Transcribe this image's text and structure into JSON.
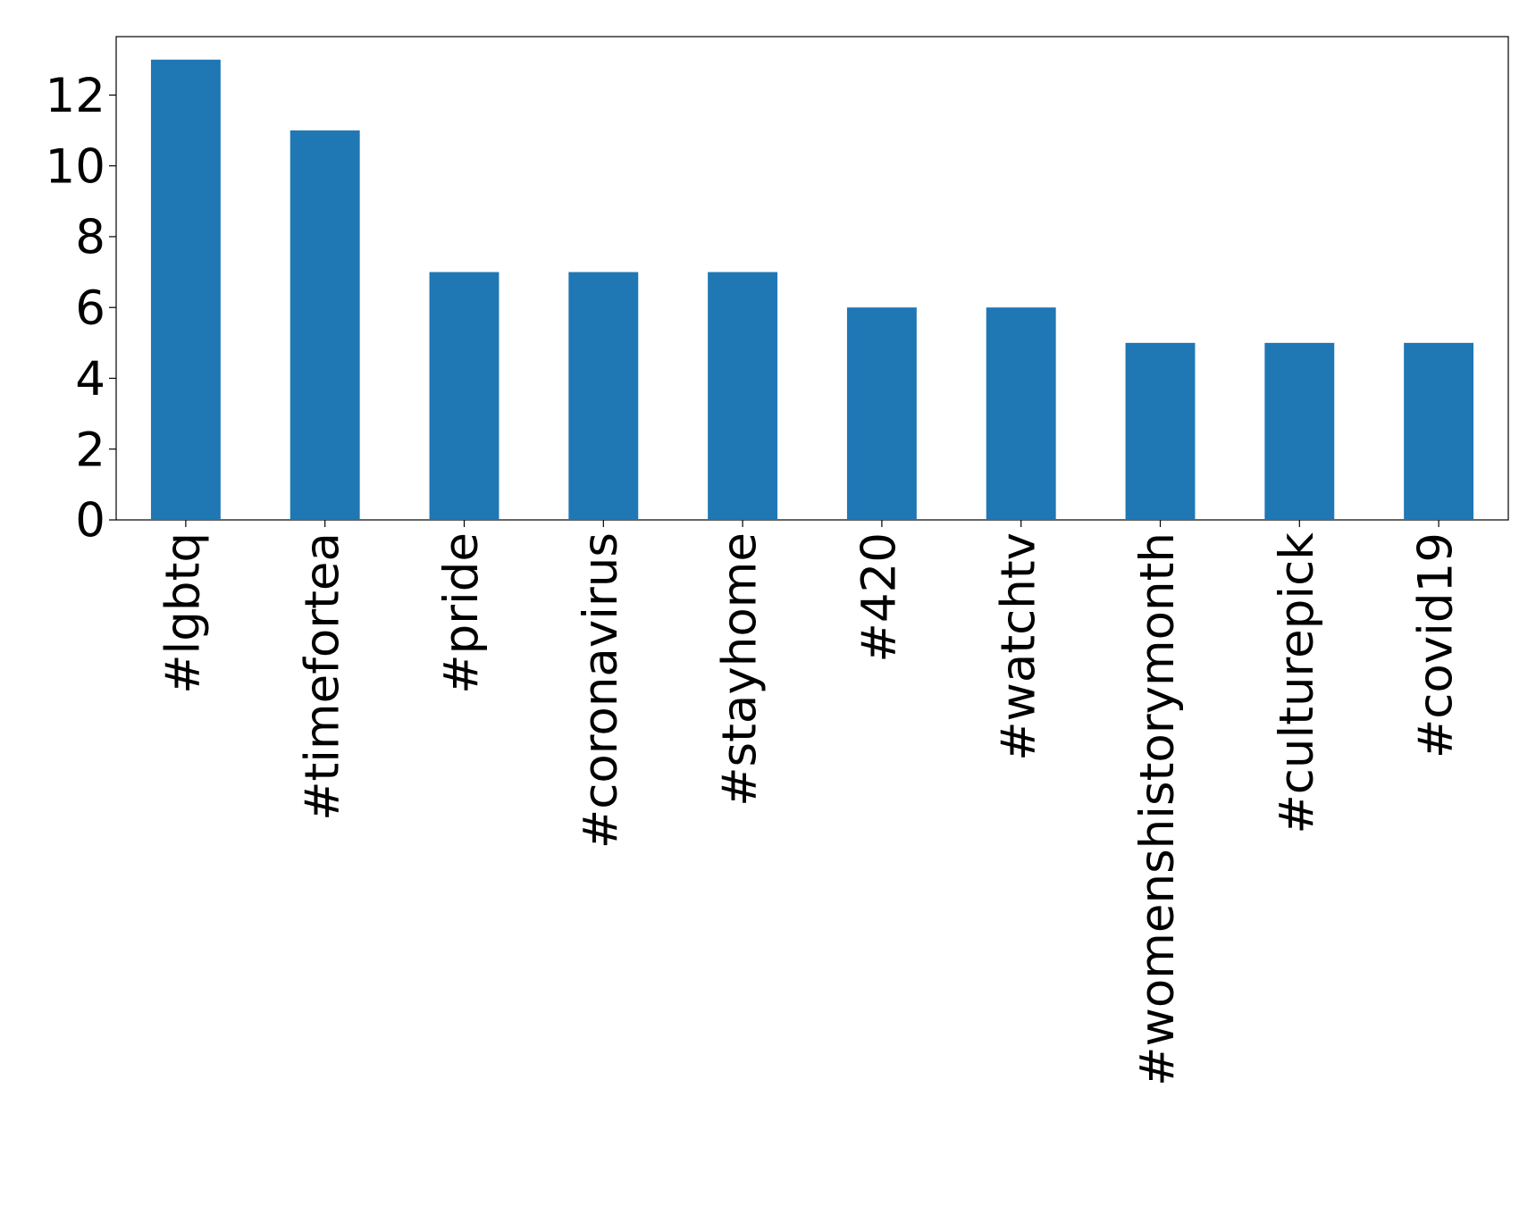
{
  "chart_data": {
    "type": "bar",
    "categories": [
      "#lgbtq",
      "#timefortea",
      "#pride",
      "#coronavirus",
      "#stayhome",
      "#420",
      "#watchtv",
      "#womenshistorymonth",
      "#culturepick",
      "#covid19"
    ],
    "values": [
      13,
      11,
      7,
      7,
      7,
      6,
      6,
      5,
      5,
      5
    ],
    "color": "#1f77b4",
    "ylim": [
      0,
      13.65
    ],
    "yticks": [
      0,
      2,
      4,
      6,
      8,
      10,
      12
    ],
    "grid": false
  }
}
